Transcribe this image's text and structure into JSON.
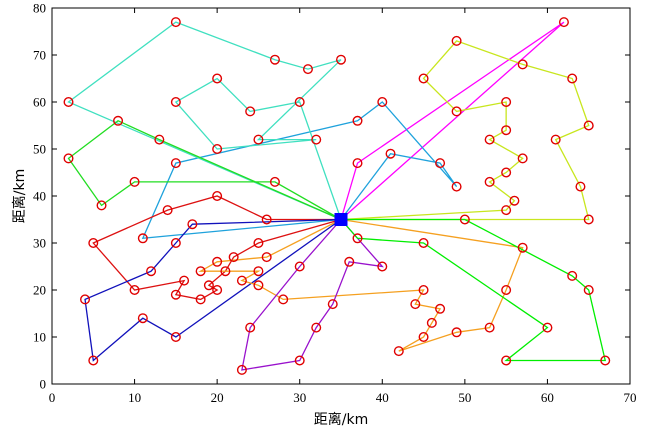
{
  "chart_data": {
    "type": "line",
    "xlabel": "距离/km",
    "ylabel": "距离/km",
    "xlim": [
      0,
      70
    ],
    "ylim": [
      0,
      80
    ],
    "x_ticks": [
      0,
      10,
      20,
      30,
      40,
      50,
      60,
      70
    ],
    "y_ticks": [
      0,
      10,
      20,
      30,
      40,
      50,
      60,
      70,
      80
    ],
    "grid": false,
    "depot": {
      "x": 35,
      "y": 35
    },
    "routes": [
      {
        "color": "#ff00ff",
        "points": [
          [
            35,
            35
          ],
          [
            37,
            47
          ],
          [
            62,
            77
          ],
          [
            35,
            35
          ]
        ]
      },
      {
        "color": "#c8e61e",
        "points": [
          [
            35,
            35
          ],
          [
            55,
            37
          ],
          [
            56,
            39
          ],
          [
            53,
            43
          ],
          [
            55,
            45
          ],
          [
            57,
            48
          ],
          [
            53,
            52
          ],
          [
            55,
            54
          ],
          [
            55,
            60
          ],
          [
            49,
            58
          ],
          [
            45,
            65
          ],
          [
            49,
            73
          ],
          [
            57,
            68
          ],
          [
            63,
            65
          ],
          [
            65,
            55
          ],
          [
            61,
            52
          ],
          [
            64,
            42
          ],
          [
            65,
            35
          ],
          [
            35,
            35
          ]
        ]
      },
      {
        "color": "#1fa2dc",
        "points": [
          [
            35,
            35
          ],
          [
            41,
            49
          ],
          [
            47,
            47
          ],
          [
            49,
            42
          ],
          [
            40,
            60
          ],
          [
            37,
            56
          ],
          [
            15,
            47
          ],
          [
            11,
            31
          ],
          [
            35,
            35
          ]
        ]
      },
      {
        "color": "#40e0c0",
        "points": [
          [
            35,
            35
          ],
          [
            2,
            60
          ],
          [
            15,
            77
          ],
          [
            27,
            69
          ],
          [
            31,
            67
          ],
          [
            35,
            69
          ],
          [
            25,
            52
          ],
          [
            32,
            52
          ],
          [
            20,
            50
          ],
          [
            15,
            60
          ],
          [
            20,
            65
          ],
          [
            24,
            58
          ],
          [
            30,
            60
          ],
          [
            35,
            35
          ]
        ]
      },
      {
        "color": "#22dd22",
        "points": [
          [
            35,
            35
          ],
          [
            27,
            43
          ],
          [
            10,
            43
          ],
          [
            6,
            38
          ],
          [
            2,
            48
          ],
          [
            8,
            56
          ],
          [
            13,
            52
          ],
          [
            35,
            35
          ]
        ]
      },
      {
        "color": "#dd1111",
        "points": [
          [
            35,
            35
          ],
          [
            26,
            35
          ],
          [
            20,
            40
          ],
          [
            14,
            37
          ],
          [
            5,
            30
          ],
          [
            10,
            20
          ],
          [
            16,
            22
          ],
          [
            15,
            19
          ],
          [
            18,
            18
          ],
          [
            20,
            20
          ],
          [
            19,
            21
          ],
          [
            21,
            24
          ],
          [
            22,
            27
          ],
          [
            25,
            30
          ],
          [
            35,
            35
          ]
        ]
      },
      {
        "color": "#1111bb",
        "points": [
          [
            35,
            35
          ],
          [
            17,
            34
          ],
          [
            15,
            30
          ],
          [
            12,
            24
          ],
          [
            4,
            18
          ],
          [
            5,
            5
          ],
          [
            11,
            14
          ],
          [
            15,
            10
          ],
          [
            35,
            35
          ]
        ]
      },
      {
        "color": "#f5a020",
        "points": [
          [
            35,
            35
          ],
          [
            26,
            27
          ],
          [
            20,
            26
          ],
          [
            18,
            24
          ],
          [
            25,
            24
          ],
          [
            23,
            22
          ],
          [
            25,
            21
          ],
          [
            28,
            18
          ],
          [
            45,
            20
          ],
          [
            44,
            17
          ],
          [
            47,
            16
          ],
          [
            46,
            13
          ],
          [
            45,
            10
          ],
          [
            42,
            7
          ],
          [
            49,
            11
          ],
          [
            53,
            12
          ],
          [
            55,
            20
          ],
          [
            57,
            29
          ],
          [
            35,
            35
          ]
        ]
      },
      {
        "color": "#9911cc",
        "points": [
          [
            35,
            35
          ],
          [
            40,
            25
          ],
          [
            36,
            26
          ],
          [
            34,
            17
          ],
          [
            32,
            12
          ],
          [
            30,
            5
          ],
          [
            23,
            3
          ],
          [
            24,
            12
          ],
          [
            30,
            25
          ],
          [
            35,
            35
          ]
        ]
      },
      {
        "color": "#00ee00",
        "points": [
          [
            35,
            35
          ],
          [
            50,
            35
          ],
          [
            63,
            23
          ],
          [
            65,
            20
          ],
          [
            67,
            5
          ],
          [
            55,
            5
          ],
          [
            60,
            12
          ],
          [
            45,
            30
          ],
          [
            37,
            31
          ],
          [
            35,
            35
          ]
        ]
      }
    ]
  }
}
